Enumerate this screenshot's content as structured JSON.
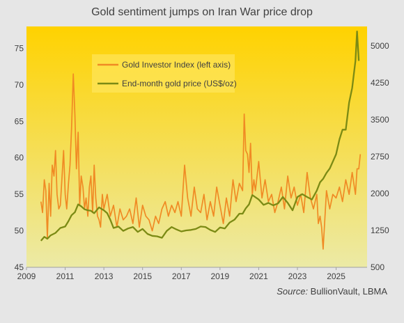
{
  "chart_data": {
    "type": "line",
    "title": "Gold sentiment jumps on Iran War price drop",
    "source_label": "Source:",
    "source_text": "BullionVault,  LBMA",
    "x_ticks": [
      "2009",
      "2011",
      "2013",
      "2015",
      "2017",
      "2019",
      "2021",
      "2023",
      "2025"
    ],
    "xlim": [
      2009,
      2026.6
    ],
    "left_axis": {
      "ylim": [
        45,
        78
      ],
      "ticks": [
        "45",
        "50",
        "55",
        "60",
        "65",
        "70",
        "75"
      ]
    },
    "right_axis": {
      "ylim": [
        500,
        5400
      ],
      "ticks": [
        "500",
        "1250",
        "2000",
        "2750",
        "3500",
        "4250",
        "5000"
      ]
    },
    "grid": false,
    "legend_position": "top-left",
    "colors": {
      "index": "#f08a24",
      "price": "#7b8a14",
      "bg_top": "#ffd200",
      "bg_bottom": "#eceaa6"
    },
    "series": [
      {
        "name": "Gold Investor Index (left axis)",
        "axis": "left",
        "x": [
          2009.75,
          2009.83,
          2009.92,
          2010.0,
          2010.08,
          2010.17,
          2010.25,
          2010.33,
          2010.42,
          2010.5,
          2010.58,
          2010.67,
          2010.75,
          2010.83,
          2010.92,
          2011.0,
          2011.08,
          2011.17,
          2011.25,
          2011.33,
          2011.42,
          2011.5,
          2011.58,
          2011.67,
          2011.75,
          2011.83,
          2011.92,
          2012.0,
          2012.08,
          2012.17,
          2012.25,
          2012.33,
          2012.42,
          2012.5,
          2012.58,
          2012.67,
          2012.75,
          2012.83,
          2012.92,
          2013.0,
          2013.17,
          2013.33,
          2013.5,
          2013.67,
          2013.83,
          2014.0,
          2014.17,
          2014.33,
          2014.5,
          2014.67,
          2014.83,
          2015.0,
          2015.17,
          2015.33,
          2015.5,
          2015.67,
          2015.83,
          2016.0,
          2016.17,
          2016.33,
          2016.5,
          2016.67,
          2016.83,
          2017.0,
          2017.17,
          2017.33,
          2017.5,
          2017.67,
          2017.83,
          2018.0,
          2018.17,
          2018.33,
          2018.5,
          2018.67,
          2018.83,
          2019.0,
          2019.17,
          2019.33,
          2019.5,
          2019.67,
          2019.83,
          2020.0,
          2020.17,
          2020.25,
          2020.33,
          2020.42,
          2020.5,
          2020.58,
          2020.67,
          2020.75,
          2020.83,
          2021.0,
          2021.17,
          2021.33,
          2021.5,
          2021.67,
          2021.83,
          2022.0,
          2022.17,
          2022.33,
          2022.5,
          2022.67,
          2022.83,
          2023.0,
          2023.17,
          2023.33,
          2023.5,
          2023.67,
          2023.83,
          2024.0,
          2024.08,
          2024.17,
          2024.25,
          2024.33,
          2024.5,
          2024.67,
          2024.83,
          2025.0,
          2025.17,
          2025.33,
          2025.5,
          2025.67,
          2025.83,
          2026.0,
          2026.08,
          2026.17,
          2026.25
        ],
        "values": [
          54,
          52.5,
          57,
          55.5,
          49,
          56.5,
          52,
          59,
          57.5,
          61,
          55,
          53,
          53.5,
          57,
          61,
          55,
          53,
          56.5,
          59,
          64,
          71.5,
          66,
          58.5,
          63.5,
          53.5,
          57.5,
          56,
          53,
          54.5,
          52,
          56,
          57.5,
          52.5,
          59,
          54.5,
          52,
          51.5,
          50.5,
          55,
          53,
          55,
          52,
          53.5,
          50.5,
          53,
          51.5,
          52,
          53,
          51,
          54.5,
          50.5,
          53.5,
          52,
          51.5,
          50,
          52,
          51,
          53,
          54,
          52,
          53.5,
          52.5,
          54,
          52,
          59,
          54.5,
          52,
          56,
          53,
          52.5,
          55,
          51.5,
          54,
          52,
          56,
          53.5,
          51,
          54.5,
          52,
          57,
          54,
          56.5,
          55.5,
          66,
          61,
          60.5,
          58,
          62,
          55,
          57,
          55.5,
          59.5,
          54.5,
          57,
          54,
          55,
          52.5,
          54,
          56,
          53,
          57.5,
          54.5,
          56,
          53.5,
          55,
          52.5,
          58,
          54.5,
          53,
          55,
          51,
          52,
          50.5,
          47.5,
          55.5,
          53,
          55,
          54.5,
          56,
          54,
          57,
          55,
          58,
          55,
          58.5,
          58.5,
          60.5
        ],
        "color": "#f08a24"
      },
      {
        "name": "End-month gold price (US$/oz)",
        "axis": "right",
        "x": [
          2009.75,
          2009.92,
          2010.08,
          2010.25,
          2010.5,
          2010.75,
          2011.0,
          2011.17,
          2011.33,
          2011.5,
          2011.67,
          2011.83,
          2012.0,
          2012.17,
          2012.33,
          2012.5,
          2012.75,
          2013.0,
          2013.17,
          2013.33,
          2013.5,
          2013.75,
          2014.0,
          2014.25,
          2014.5,
          2014.75,
          2015.0,
          2015.25,
          2015.5,
          2015.75,
          2016.0,
          2016.25,
          2016.5,
          2016.75,
          2017.0,
          2017.25,
          2017.5,
          2017.75,
          2018.0,
          2018.25,
          2018.5,
          2018.75,
          2019.0,
          2019.25,
          2019.5,
          2019.75,
          2020.0,
          2020.17,
          2020.33,
          2020.5,
          2020.67,
          2021.0,
          2021.25,
          2021.5,
          2021.75,
          2022.0,
          2022.25,
          2022.5,
          2022.75,
          2023.0,
          2023.25,
          2023.5,
          2023.75,
          2024.0,
          2024.17,
          2024.33,
          2024.5,
          2024.67,
          2024.83,
          2025.0,
          2025.17,
          2025.33,
          2025.5,
          2025.67,
          2025.75,
          2025.83,
          2026.0,
          2026.08,
          2026.17
        ],
        "values": [
          1040,
          1120,
          1080,
          1150,
          1200,
          1300,
          1330,
          1440,
          1560,
          1620,
          1780,
          1740,
          1680,
          1660,
          1650,
          1600,
          1720,
          1660,
          1600,
          1470,
          1300,
          1330,
          1240,
          1290,
          1320,
          1220,
          1280,
          1180,
          1140,
          1130,
          1100,
          1240,
          1320,
          1270,
          1230,
          1250,
          1260,
          1280,
          1330,
          1320,
          1260,
          1220,
          1310,
          1290,
          1410,
          1470,
          1590,
          1590,
          1700,
          1780,
          1970,
          1880,
          1770,
          1810,
          1760,
          1800,
          1930,
          1810,
          1660,
          1930,
          1990,
          1930,
          1880,
          2060,
          2230,
          2300,
          2420,
          2510,
          2650,
          2800,
          3100,
          3300,
          3300,
          3850,
          4000,
          4150,
          4700,
          5300,
          4700
        ],
        "color": "#7b8a14"
      }
    ]
  }
}
